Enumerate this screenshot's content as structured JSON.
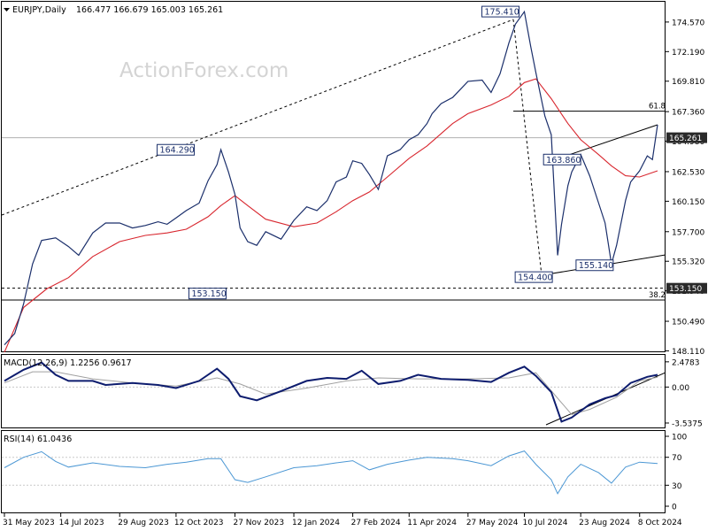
{
  "header": {
    "symbol": "EURJPY,Daily",
    "ohlc": "166.477 166.679 165.003 165.261"
  },
  "watermark": "ActionForex.com",
  "colors": {
    "price": "#1b2f6b",
    "ema": "#d8262e",
    "macd": "#0d1c6e",
    "signal": "#a0a0a0",
    "rsi": "#4b97d4",
    "price_marker_bg": "#2a2a2a"
  },
  "chart_data": [
    {
      "type": "line",
      "title": "EURJPY,Daily",
      "pane": "price",
      "ylim": [
        148.0,
        176.2
      ],
      "y_ticks": [
        "174.570",
        "172.190",
        "169.810",
        "167.360",
        "164.980",
        "162.530",
        "160.150",
        "157.700",
        "155.320",
        "152.940",
        "150.490",
        "148.110"
      ],
      "x_ticks": [
        "31 May 2023",
        "14 Jul 2023",
        "29 Aug 2023",
        "12 Oct 2023",
        "27 Nov 2023",
        "12 Jan 2024",
        "27 Feb 2024",
        "11 Apr 2024",
        "27 May 2024",
        "10 Jul 2024",
        "23 Aug 2024",
        "8 Oct 2024"
      ],
      "series": [
        {
          "name": "",
          "x": [
            "2023-05-31",
            "2023-06-08",
            "2023-06-15",
            "2023-06-22",
            "2023-06-29",
            "2023-07-10",
            "2023-07-20",
            "2023-07-28",
            "2023-08-08",
            "2023-08-18",
            "2023-08-29",
            "2023-09-08",
            "2023-09-18",
            "2023-09-28",
            "2023-10-05",
            "2023-10-12",
            "2023-10-20",
            "2023-10-30",
            "2023-11-06",
            "2023-11-13",
            "2023-11-16",
            "2023-11-22",
            "2023-11-27",
            "2023-12-01",
            "2023-12-07",
            "2023-12-14",
            "2023-12-21",
            "2024-01-02",
            "2024-01-12",
            "2024-01-22",
            "2024-01-30",
            "2024-02-07",
            "2024-02-14",
            "2024-02-22",
            "2024-02-27",
            "2024-03-05",
            "2024-03-11",
            "2024-03-18",
            "2024-03-25",
            "2024-04-04",
            "2024-04-11",
            "2024-04-18",
            "2024-04-25",
            "2024-04-29",
            "2024-05-06",
            "2024-05-15",
            "2024-05-27",
            "2024-06-07",
            "2024-06-14",
            "2024-06-21",
            "2024-06-28",
            "2024-07-03",
            "2024-07-10",
            "2024-07-15",
            "2024-07-19",
            "2024-07-26",
            "2024-07-31",
            "2024-08-05",
            "2024-08-08",
            "2024-08-13",
            "2024-08-16",
            "2024-08-23",
            "2024-08-30",
            "2024-09-06",
            "2024-09-11",
            "2024-09-16",
            "2024-09-20",
            "2024-09-27",
            "2024-10-01",
            "2024-10-08",
            "2024-10-14",
            "2024-10-18",
            "2024-10-22"
          ],
          "y": [
            148.6,
            149.5,
            151.9,
            155.1,
            157.0,
            157.2,
            156.5,
            155.8,
            157.6,
            158.4,
            158.4,
            158.0,
            158.2,
            158.5,
            158.3,
            158.8,
            159.4,
            160.0,
            161.8,
            163.1,
            164.3,
            162.5,
            160.7,
            158.0,
            156.9,
            156.6,
            157.7,
            157.1,
            158.6,
            159.7,
            159.4,
            160.2,
            161.7,
            162.1,
            163.4,
            163.2,
            162.3,
            161.1,
            163.8,
            164.3,
            165.1,
            165.5,
            166.4,
            167.2,
            168.0,
            168.5,
            169.8,
            169.9,
            168.9,
            170.4,
            172.9,
            174.4,
            175.4,
            172.6,
            170.5,
            167.0,
            165.5,
            155.8,
            158.3,
            161.4,
            162.5,
            163.9,
            162.2,
            160.0,
            158.4,
            155.1,
            156.6,
            160.2,
            161.7,
            162.6,
            163.8,
            163.5,
            166.3
          ]
        },
        {
          "name": "",
          "x": [
            "2023-05-31",
            "2023-06-15",
            "2023-07-03",
            "2023-07-20",
            "2023-08-08",
            "2023-08-29",
            "2023-09-18",
            "2023-10-05",
            "2023-10-20",
            "2023-11-06",
            "2023-11-16",
            "2023-11-27",
            "2023-12-07",
            "2023-12-21",
            "2024-01-12",
            "2024-01-30",
            "2024-02-14",
            "2024-02-27",
            "2024-03-11",
            "2024-03-25",
            "2024-04-11",
            "2024-04-25",
            "2024-05-15",
            "2024-05-27",
            "2024-06-14",
            "2024-06-28",
            "2024-07-10",
            "2024-07-19",
            "2024-07-31",
            "2024-08-13",
            "2024-08-23",
            "2024-09-06",
            "2024-09-16",
            "2024-09-27",
            "2024-10-08",
            "2024-10-22"
          ],
          "y": [
            148.0,
            151.6,
            153.1,
            154.0,
            155.7,
            156.9,
            157.4,
            157.6,
            157.9,
            158.9,
            159.8,
            160.6,
            159.8,
            158.7,
            158.1,
            158.4,
            159.3,
            160.2,
            160.9,
            162.1,
            163.6,
            164.6,
            166.4,
            167.2,
            167.9,
            168.6,
            169.7,
            170.0,
            168.4,
            166.4,
            165.1,
            163.9,
            163.0,
            162.2,
            162.1,
            162.6
          ]
        }
      ],
      "annotations": [
        {
          "label": "175.410",
          "x": "2024-07-10",
          "y": 175.41
        },
        {
          "label": "164.290",
          "x": "2023-11-16",
          "y": 164.29
        },
        {
          "label": "163.860",
          "x": "2024-08-23",
          "y": 163.86
        },
        {
          "label": "153.150",
          "x": "2023-11-27",
          "y": 153.15
        },
        {
          "label": "154.400",
          "x": "2024-08-05",
          "y": 154.4
        },
        {
          "label": "155.140",
          "x": "2024-09-16",
          "y": 155.14
        },
        {
          "label": "61.8",
          "x": "2024-10-22",
          "y": 167.4
        },
        {
          "label": "38.2",
          "x": "2024-10-22",
          "y": 152.2
        }
      ],
      "current_price": 165.261,
      "levels": [
        {
          "label": "61.8",
          "y": 167.4
        },
        {
          "label": "38.2",
          "y": 152.2
        },
        {
          "label": "",
          "y": 153.15
        }
      ]
    },
    {
      "type": "line",
      "title": "MACD(12,26,9) 1.2256 0.9617",
      "pane": "macd",
      "ylim": [
        -3.8,
        2.9
      ],
      "y_ticks": [
        "2.4783",
        "0.00",
        "-3.5375"
      ],
      "series": [
        {
          "name": "",
          "x": [
            "2023-05-31",
            "2023-06-15",
            "2023-06-29",
            "2023-07-10",
            "2023-07-20",
            "2023-08-08",
            "2023-08-18",
            "2023-09-08",
            "2023-09-28",
            "2023-10-12",
            "2023-10-30",
            "2023-11-13",
            "2023-11-22",
            "2023-12-01",
            "2023-12-14",
            "2024-01-02",
            "2024-01-22",
            "2024-02-07",
            "2024-02-22",
            "2024-03-05",
            "2024-03-18",
            "2024-04-04",
            "2024-04-18",
            "2024-05-06",
            "2024-05-27",
            "2024-06-14",
            "2024-06-28",
            "2024-07-10",
            "2024-07-19",
            "2024-07-31",
            "2024-08-08",
            "2024-08-16",
            "2024-08-30",
            "2024-09-11",
            "2024-09-20",
            "2024-10-01",
            "2024-10-14",
            "2024-10-22"
          ],
          "y": [
            0.6,
            1.7,
            2.4,
            1.2,
            0.6,
            0.6,
            0.2,
            0.4,
            0.2,
            -0.1,
            0.6,
            1.8,
            0.8,
            -0.9,
            -1.3,
            -0.4,
            0.6,
            0.9,
            0.8,
            1.6,
            0.3,
            0.6,
            1.2,
            0.8,
            0.7,
            0.5,
            1.4,
            2.0,
            1.1,
            -0.5,
            -3.4,
            -3.0,
            -1.7,
            -1.1,
            -0.8,
            0.4,
            1.0,
            1.2
          ]
        },
        {
          "name": "",
          "x": [
            "2023-05-31",
            "2023-06-22",
            "2023-07-10",
            "2023-08-08",
            "2023-09-08",
            "2023-10-12",
            "2023-11-13",
            "2023-12-01",
            "2023-12-21",
            "2024-01-22",
            "2024-02-22",
            "2024-03-18",
            "2024-04-18",
            "2024-05-27",
            "2024-06-28",
            "2024-07-19",
            "2024-08-05",
            "2024-08-16",
            "2024-08-30",
            "2024-09-20",
            "2024-10-08",
            "2024-10-22"
          ],
          "y": [
            0.4,
            1.5,
            1.5,
            0.8,
            0.4,
            0.1,
            0.9,
            0.3,
            -0.7,
            -0.1,
            0.6,
            0.9,
            0.8,
            0.8,
            0.9,
            1.4,
            -1.1,
            -2.7,
            -2.2,
            -1.0,
            0.6,
            0.96
          ]
        }
      ]
    },
    {
      "type": "line",
      "title": "RSI(14) 61.0436",
      "pane": "rsi",
      "ylim": [
        0,
        100
      ],
      "y_ticks": [
        "100",
        "70",
        "30",
        "0"
      ],
      "series": [
        {
          "name": "",
          "x": [
            "2023-05-31",
            "2023-06-15",
            "2023-06-29",
            "2023-07-10",
            "2023-07-20",
            "2023-08-08",
            "2023-08-29",
            "2023-09-18",
            "2023-10-05",
            "2023-10-20",
            "2023-11-06",
            "2023-11-16",
            "2023-11-27",
            "2023-12-07",
            "2023-12-21",
            "2024-01-12",
            "2024-01-30",
            "2024-02-14",
            "2024-02-27",
            "2024-03-11",
            "2024-03-25",
            "2024-04-11",
            "2024-04-25",
            "2024-05-15",
            "2024-05-27",
            "2024-06-14",
            "2024-06-28",
            "2024-07-10",
            "2024-07-19",
            "2024-07-31",
            "2024-08-05",
            "2024-08-13",
            "2024-08-23",
            "2024-09-06",
            "2024-09-16",
            "2024-09-27",
            "2024-10-08",
            "2024-10-22"
          ],
          "y": [
            55,
            70,
            78,
            64,
            56,
            62,
            57,
            55,
            60,
            63,
            68,
            68,
            38,
            34,
            42,
            55,
            58,
            62,
            65,
            52,
            60,
            66,
            70,
            68,
            65,
            58,
            72,
            79,
            60,
            38,
            18,
            42,
            60,
            48,
            33,
            56,
            63,
            61
          ]
        }
      ]
    }
  ]
}
